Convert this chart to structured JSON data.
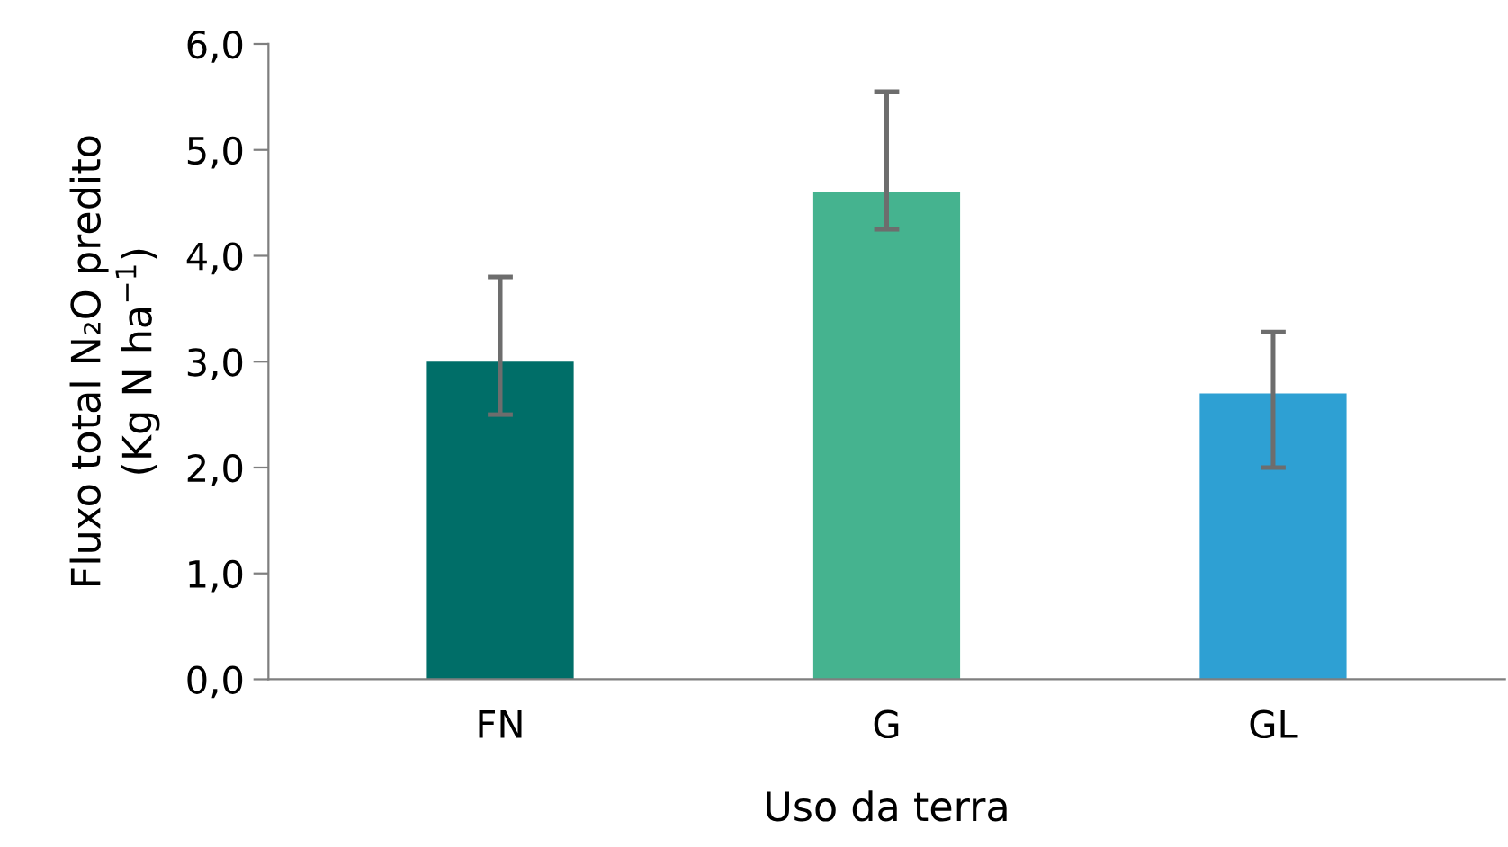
{
  "chart_data": {
    "type": "bar",
    "xlabel": "Uso da terra",
    "ylabel": "Fluxo total N₂O predito\n(Kg N ha$^{−1}$)",
    "categories": [
      "FN",
      "G",
      "GL"
    ],
    "values": [
      3.0,
      4.6,
      2.7
    ],
    "colors": [
      "#006e68",
      "#45b38f",
      "#2ea0d3"
    ],
    "errors": [
      [
        2.5,
        3.8
      ],
      [
        4.25,
        5.55
      ],
      [
        2.0,
        3.28
      ]
    ],
    "ylim": [
      0,
      6
    ],
    "yticks": [
      {
        "value": 0,
        "label": "0,0"
      },
      {
        "value": 1,
        "label": "1,0"
      },
      {
        "value": 2,
        "label": "2,0"
      },
      {
        "value": 3,
        "label": "3,0"
      },
      {
        "value": 4,
        "label": "4,0"
      },
      {
        "value": 5,
        "label": "5,0"
      },
      {
        "value": 6,
        "label": "6,0"
      }
    ],
    "grid": false
  }
}
